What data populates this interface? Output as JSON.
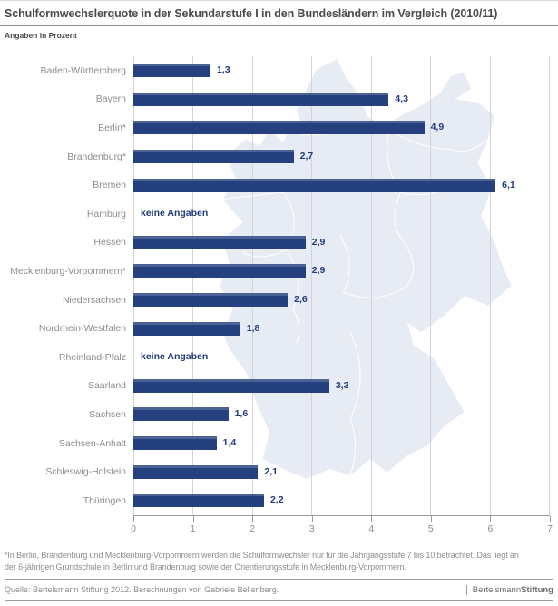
{
  "header": {
    "title": "Schulformwechslerquote in der Sekundarstufe I in den Bundesländern im Vergleich (2010/11)",
    "subtitle": "Angaben in Prozent"
  },
  "chart_data": {
    "type": "bar",
    "orientation": "horizontal",
    "title": "Schulformwechslerquote in der Sekundarstufe I in den Bundesländern im Vergleich (2010/11)",
    "unit_note": "Angaben in Prozent",
    "categories": [
      "Baden-Württemberg",
      "Bayern",
      "Berlin*",
      "Brandenburg*",
      "Bremen",
      "Hamburg",
      "Hessen",
      "Mecklenburg-Vorpommern*",
      "Niedersachsen",
      "Nordrhein-Westfalen",
      "Rheinland-Pfalz",
      "Saarland",
      "Sachsen",
      "Sachsen-Anhalt",
      "Schleswig-Holstein",
      "Thüringen"
    ],
    "values": [
      1.3,
      4.3,
      4.9,
      2.7,
      6.1,
      null,
      2.9,
      2.9,
      2.6,
      1.8,
      null,
      3.3,
      1.6,
      1.4,
      2.1,
      2.2
    ],
    "value_labels": [
      "1,3",
      "4,3",
      "4,9",
      "2,7",
      "6,1",
      "keine Angaben",
      "2,9",
      "2,9",
      "2,6",
      "1,8",
      "keine Angaben",
      "3,3",
      "1,6",
      "1,4",
      "2,1",
      "2,2"
    ],
    "no_data_label": "keine Angaben",
    "xlabel": "",
    "ylabel": "",
    "xlim": [
      0,
      7
    ],
    "x_ticks": [
      0,
      1,
      2,
      3,
      4,
      5,
      6,
      7
    ],
    "grid": true,
    "legend": "none",
    "background_decoration": "germany-map"
  },
  "colors": {
    "bar_blue": "#24407e",
    "value_text_blue": "#213c7d",
    "map_fill": "#e7ebf3",
    "map_border": "#ffffff",
    "gridline": "#d0d3da",
    "label_gray": "#8c8c8c"
  },
  "footer": {
    "footnote_line1": "*In Berlin, Brandenburg und Mecklenburg-Vorpommern werden die Schulformwechsler nur für die Jahrgangsstufe 7 bis 10 betrachtet. Das liegt an",
    "footnote_line2": "der 6-jährigen Grundschule in Berlin und Brandenburg sowie der Orientierungsstufe in Mecklenburg-Vorpommern.",
    "source": "Quelle: Bertelsmann Stiftung 2012. Berechnungen von Gabriele Bellenberg.",
    "logo": {
      "part1": "Bertelsmann",
      "part2": "Stiftung"
    }
  }
}
